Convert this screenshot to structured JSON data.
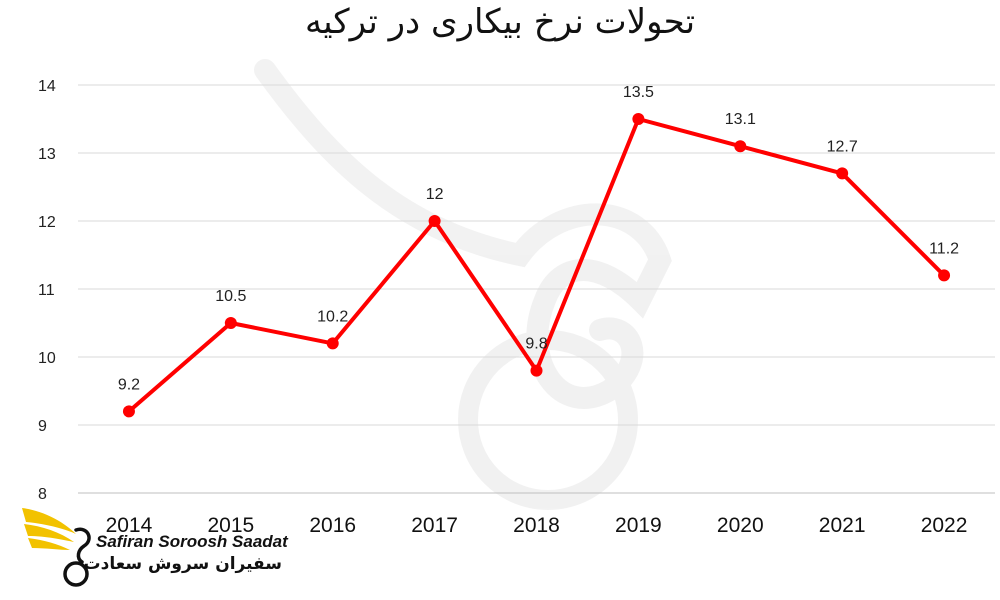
{
  "chart_data": {
    "type": "line",
    "title": "تحولات نرخ بیکاری در ترکیه",
    "categories": [
      "2014",
      "2015",
      "2016",
      "2017",
      "2018",
      "2019",
      "2020",
      "2021",
      "2022"
    ],
    "series": [
      {
        "values": [
          9.2,
          10.5,
          10.2,
          12,
          9.8,
          13.5,
          13.1,
          12.7,
          11.2
        ],
        "labels": [
          "9.2",
          "10.5",
          "10.2",
          "12",
          "9.8",
          "13.5",
          "13.1",
          "12.7",
          "11.2"
        ],
        "color": "#ff0000"
      }
    ],
    "yticks": [
      "8",
      "9",
      "10",
      "11",
      "12",
      "13",
      "14"
    ],
    "ylim": [
      8,
      14
    ],
    "grid": true,
    "legend": "none"
  },
  "watermark": {
    "latin": "Safiran Soroosh Saadat",
    "persian": "سفیران سروش سعادت",
    "colors": {
      "wing": "#f2c200",
      "text": "#111111"
    }
  },
  "colors": {
    "line": "#ff0000",
    "grid": "#d9d9d9",
    "axis": "#bfbfbf"
  }
}
